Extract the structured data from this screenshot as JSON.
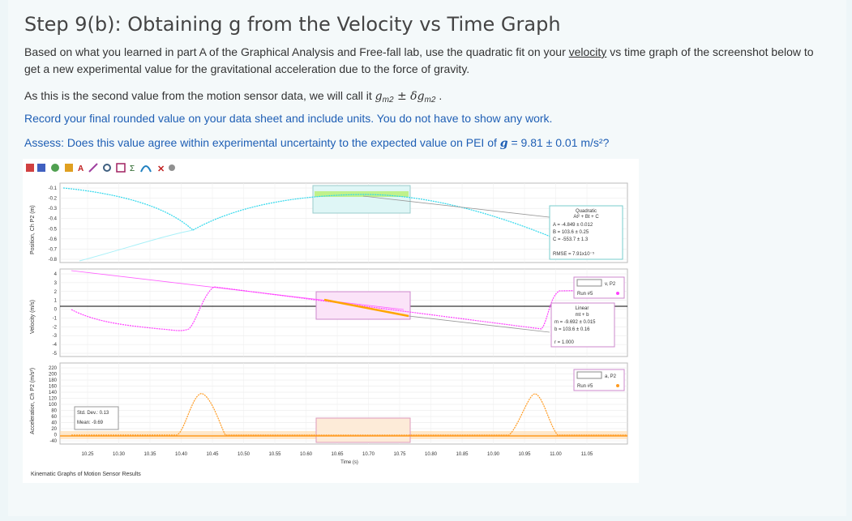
{
  "title": "Step 9(b): Obtaining g from the Velocity vs Time Graph",
  "para1": {
    "before_link": "Based on what you learned in part A of the Graphical Analysis and Free-fall lab, use the quadratic fit on your ",
    "link": "velocity",
    "after_link": " vs time graph of the screenshot below  to get a new experimental value for the gravitational acceleration due to the force of gravity."
  },
  "para2": {
    "text": "As this is the second value from the motion sensor data, we will call it ",
    "g": "g",
    "sub": "m2",
    "pm": " ± δ",
    "g2": "g",
    "sub2": "m2",
    "end": " ."
  },
  "para3": "Record your final rounded value on your data sheet and include units.  You do not have to show any work.",
  "para4": {
    "text": "Assess: Does this value agree within experimental uncertainty to the expected value on PEI of ",
    "g": "g",
    "value": " = 9.81 ± 0.01 m/s²?"
  },
  "figure": {
    "caption": "Kinematic Graphs of Motion Sensor Results",
    "toolbar_icons": [
      "file-icon",
      "table-icon",
      "chart-icon",
      "scale-icon",
      "text-icon",
      "tangent-icon",
      "zoom-icon",
      "select-icon",
      "stats-icon",
      "fit-icon",
      "close-icon",
      "view-icon"
    ],
    "charts": [
      {
        "ylabel": "Position, Ch P2 (m)",
        "yticks": [
          "-0.1",
          "-0.2",
          "-0.3",
          "-0.4",
          "-0.5",
          "-0.6",
          "-0.7",
          "-0.8"
        ],
        "fit_box": {
          "title": "Quadratic",
          "eq": "At² + Bt + C",
          "a": "A = -4.849 ± 0.012",
          "b": "B = 103.6  ± 0.25",
          "c": "C = -553.7 ± 1.3",
          "rmse": "RMSE = 7.91x10⁻⁵"
        },
        "colors": {
          "series": "#00d0e8",
          "fit_band": "#a0f060"
        }
      },
      {
        "ylabel": "Velocity (m/s)",
        "yticks": [
          "4",
          "3",
          "2",
          "1",
          "0",
          "-1",
          "-2",
          "-3",
          "-4",
          "-5"
        ],
        "legend": {
          "label": "v, P2",
          "run": "Run #5"
        },
        "fit_box": {
          "title": "Linear",
          "eq": "mt + b",
          "m": "m = -9.692 ± 0.015",
          "b": "b = 103.6  ± 0.16",
          "r": "r = 1.000"
        },
        "colors": {
          "series": "#ff40ff",
          "fit": "#ff9900"
        }
      },
      {
        "ylabel": "Acceleration, Ch P2 (m/s²)",
        "yticks": [
          "220",
          "200",
          "180",
          "160",
          "140",
          "120",
          "100",
          "80",
          "60",
          "40",
          "20",
          "0",
          "-40"
        ],
        "legend": {
          "label": "a, P2",
          "run": "Run #5"
        },
        "stats": {
          "std": "Std. Dev.: 0.13",
          "mean": "Mean: -9.69"
        },
        "colors": {
          "series": "#ff9a20"
        }
      }
    ],
    "xaxis": {
      "ticks": [
        "10.25",
        "10.30",
        "10.35",
        "10.40",
        "10.45",
        "10.50",
        "10.55",
        "10.60",
        "10.65",
        "10.70",
        "10.75",
        "10.80",
        "10.85",
        "10.90",
        "10.95",
        "11.00",
        "11.05"
      ],
      "label": "Time (s)"
    }
  }
}
